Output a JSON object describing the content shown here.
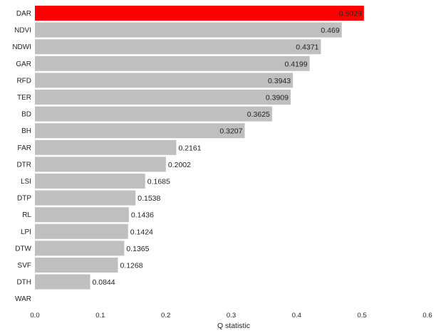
{
  "chart_data": {
    "type": "bar",
    "orientation": "horizontal",
    "categories": [
      "DAR",
      "NDVI",
      "NDWI",
      "GAR",
      "RFD",
      "TER",
      "BD",
      "BH",
      "FAR",
      "DTR",
      "LSI",
      "DTP",
      "RL",
      "LPI",
      "DTW",
      "SVF",
      "DTH",
      "WAR"
    ],
    "values": [
      0.5029,
      0.469,
      0.4371,
      0.4199,
      0.3943,
      0.3909,
      0.3625,
      0.3207,
      0.2161,
      0.2002,
      0.1685,
      0.1538,
      0.1436,
      0.1424,
      0.1365,
      0.1268,
      0.0844,
      0
    ],
    "value_labels": [
      "0.5029",
      "0.469",
      "0.4371",
      "0.4199",
      "0.3943",
      "0.3909",
      "0.3625",
      "0.3207",
      "0.2161",
      "0.2002",
      "0.1685",
      "0.1538",
      "0.1436",
      "0.1424",
      "0.1365",
      "0.1268",
      "0.0844",
      ""
    ],
    "highlight_index": 0,
    "highlight_color": "#ff0000",
    "bar_color": "#bfbfbf",
    "xlabel": "Q statistic",
    "ylabel": "",
    "xlim": [
      0,
      0.6
    ],
    "xticks": [
      0.0,
      0.1,
      0.2,
      0.3,
      0.4,
      0.5,
      0.6
    ],
    "xtick_labels": [
      "0.0",
      "0.1",
      "0.2",
      "0.3",
      "0.4",
      "0.5",
      "0.6"
    ],
    "grid": false,
    "legend": "none"
  }
}
